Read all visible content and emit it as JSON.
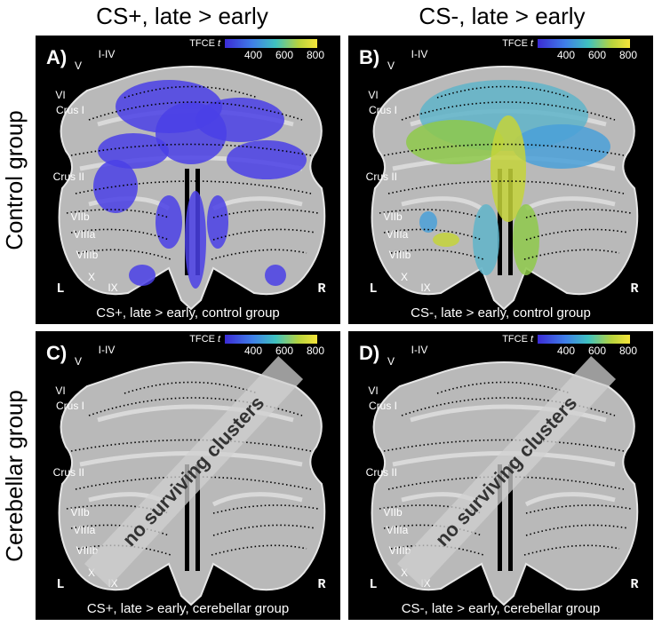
{
  "column_headers": [
    "CS+, late > early",
    "CS-, late > early"
  ],
  "row_headers": [
    "Control group",
    "Cerebellar group"
  ],
  "panels": [
    {
      "label": "A)",
      "colorbar": {
        "title": "TFCE",
        "title_italic": "t",
        "ticks": [
          "400",
          "600",
          "800"
        ]
      },
      "lobules": [
        "V",
        "I-IV",
        "VI",
        "Crus I",
        "Crus II",
        "VIIb",
        "VIIIa",
        "VIIIb",
        "X",
        "IX"
      ],
      "left": "L",
      "right": "R",
      "caption": "CS+, late > early, control group"
    },
    {
      "label": "B)",
      "colorbar": {
        "title": "TFCE",
        "title_italic": "t",
        "ticks": [
          "400",
          "600",
          "800"
        ]
      },
      "lobules": [
        "V",
        "I-IV",
        "VI",
        "Crus I",
        "Crus II",
        "VIIb",
        "VIIIa",
        "VIIIb",
        "X",
        "IX"
      ],
      "left": "L",
      "right": "R",
      "caption": "CS-, late > early, control group"
    },
    {
      "label": "C)",
      "colorbar": {
        "title": "TFCE",
        "title_italic": "t",
        "ticks": [
          "400",
          "600",
          "800"
        ]
      },
      "lobules": [
        "V",
        "I-IV",
        "VI",
        "Crus I",
        "Crus II",
        "VIIb",
        "VIIIa",
        "VIIIb",
        "X",
        "IX"
      ],
      "left": "L",
      "right": "R",
      "caption": "CS+, late > early, cerebellar group",
      "annotation": "no surviving clusters"
    },
    {
      "label": "D)",
      "colorbar": {
        "title": "TFCE",
        "title_italic": "t",
        "ticks": [
          "400",
          "600",
          "800"
        ]
      },
      "lobules": [
        "V",
        "I-IV",
        "VI",
        "Crus I",
        "Crus II",
        "VIIb",
        "VIIIa",
        "VIIIb",
        "X",
        "IX"
      ],
      "left": "L",
      "right": "R",
      "caption": "CS-, late > early, cerebellar group",
      "annotation": "no surviving clusters"
    }
  ]
}
